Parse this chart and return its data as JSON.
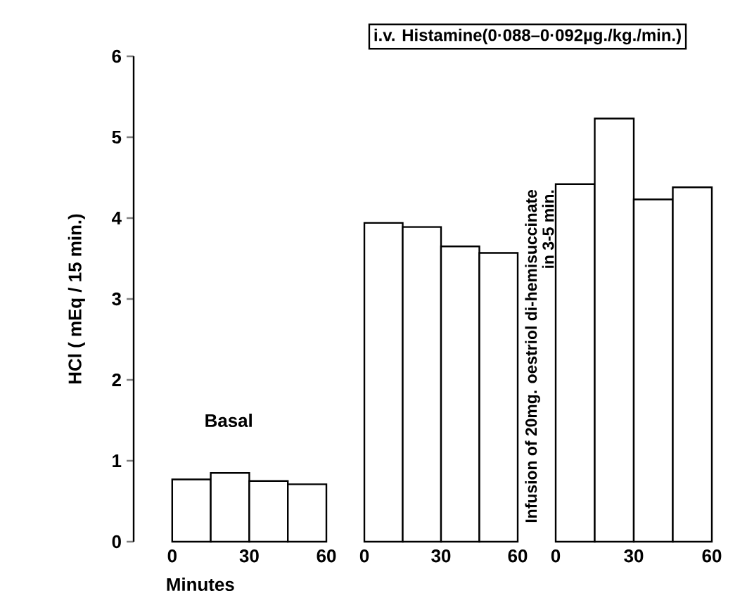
{
  "chart_data": [
    {
      "type": "histogram",
      "bins": [
        0,
        15,
        30,
        45,
        60
      ],
      "values": [
        0.77,
        0.85,
        0.75,
        0.71
      ],
      "color": "#ffffff",
      "xlim": [
        -15,
        60
      ],
      "xticks": [
        0,
        30,
        60
      ],
      "ylim": [
        0,
        6
      ],
      "yticks": [
        0,
        1,
        2,
        3,
        4,
        5,
        6
      ],
      "xlabel": "Minutes",
      "ylabel": "HCl ( mEq / 15 min.)",
      "annotations": [
        "Basal"
      ]
    },
    {
      "type": "histogram",
      "bins": [
        0,
        15,
        30,
        45,
        60
      ],
      "values": [
        3.94,
        3.89,
        3.65,
        3.57
      ],
      "color": "#ffffff",
      "xlim": [
        0,
        60
      ],
      "xticks": [
        0,
        30,
        60
      ],
      "ylim": [
        0,
        6
      ],
      "tick_labels": "x"
    },
    {
      "type": "histogram",
      "bins": [
        0,
        15,
        30,
        45,
        60
      ],
      "values": [
        4.42,
        5.23,
        4.23,
        4.38
      ],
      "color": "#ffffff",
      "xlim": [
        0,
        60
      ],
      "xticks": [
        0,
        30,
        60
      ],
      "ylim": [
        0,
        6
      ],
      "tick_labels": "x",
      "annotations": [
        "i.v. Histamine(0·088–0·092µg./kg./min.)",
        "Infusion of 20mg. oestriol di-hemisuccinate",
        "in 3-5 min."
      ]
    }
  ]
}
